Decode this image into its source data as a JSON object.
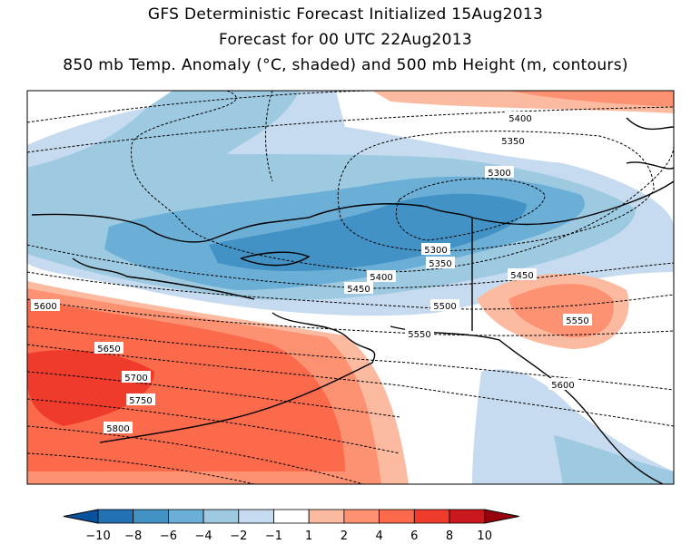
{
  "titles": {
    "line1": "GFS Deterministic Forecast Initialized 15Aug2013",
    "line2": "Forecast for 00 UTC 22Aug2013",
    "line3": "850 mb Temp. Anomaly (°C, shaded) and 500 mb Height (m, contours)"
  },
  "map": {
    "shaded_variable": "850 mb Temp. Anomaly",
    "shaded_units": "°C",
    "contour_variable": "500 mb Height",
    "contour_units": "m",
    "contour_labels": [
      "5400",
      "5350",
      "5300",
      "5300",
      "5350",
      "5400",
      "5450",
      "5450",
      "5500",
      "5550",
      "5550",
      "5600",
      "5600",
      "5650",
      "5700",
      "5750",
      "5800"
    ]
  },
  "colorbar": {
    "ticks": [
      "−10",
      "−8",
      "−6",
      "−4",
      "−2",
      "−1",
      "1",
      "2",
      "4",
      "6",
      "8",
      "10"
    ],
    "colors": [
      "#08519c",
      "#2171b5",
      "#4292c6",
      "#6baed6",
      "#9ecae1",
      "#c6dbef",
      "#ffffff",
      "#fcbba1",
      "#fc9272",
      "#fb6a4a",
      "#ef3b2c",
      "#cb181d",
      "#99000d"
    ]
  }
}
